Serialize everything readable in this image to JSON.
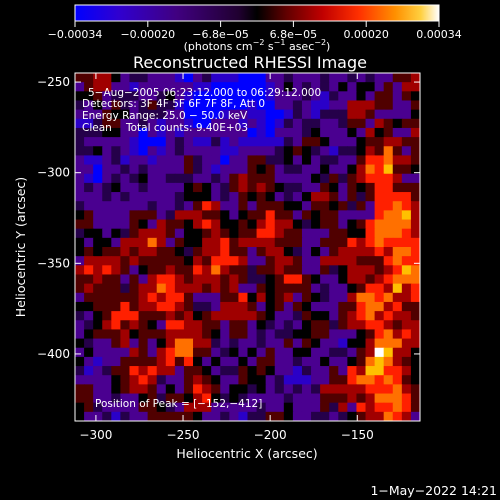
{
  "chart_data": {
    "type": "heatmap",
    "title": "Reconstructed RHESSI Image",
    "xlabel": "Heliocentric X (arcsec)",
    "ylabel": "Heliocentric Y (arcsec)",
    "xlim": [
      -312,
      -114
    ],
    "ylim": [
      -437,
      -245
    ],
    "x_ticks": [
      -300,
      -250,
      -200,
      -150
    ],
    "x_tick_labels": [
      "−300",
      "−250",
      "−200",
      "−150"
    ],
    "y_ticks": [
      -250,
      -300,
      -350,
      -400
    ],
    "y_tick_labels": [
      "−250",
      "−300",
      "−350",
      "−400"
    ],
    "colorbar": {
      "range": [
        -0.00034,
        0.00034
      ],
      "tick_labels": [
        "−0.00034",
        "−0.00020",
        "−6.8e−05",
        "6.8e−05",
        "0.00020",
        "0.00034"
      ],
      "unit_prefix": "(photons cm",
      "unit_sup1": "−2",
      "unit_mid": " s",
      "unit_sup2": "−1",
      "unit_mid2": " asec",
      "unit_sup3": "−2",
      "unit_suffix": ")"
    },
    "annotations": {
      "time": "5−Aug−2005 06:23:12.000 to 06:29:12.000",
      "detectors": "Detectors: 3F 4F 5F 6F 7F 8F, Att 0",
      "energy": "Energy Range: 25.0 − 50.0 keV",
      "method": "Clean",
      "counts": "Total counts: 9.40E+03",
      "peak": "Position of Peak = [−152,−412]"
    },
    "colormap": [
      "#0000ff",
      "#2a00c8",
      "#4a0090",
      "#25004a",
      "#000000",
      "#500000",
      "#a00000",
      "#ff2000",
      "#ff7000",
      "#ffc000",
      "#ffffff"
    ]
  },
  "footer": {
    "timestamp": "1−May−2022 14:21"
  }
}
